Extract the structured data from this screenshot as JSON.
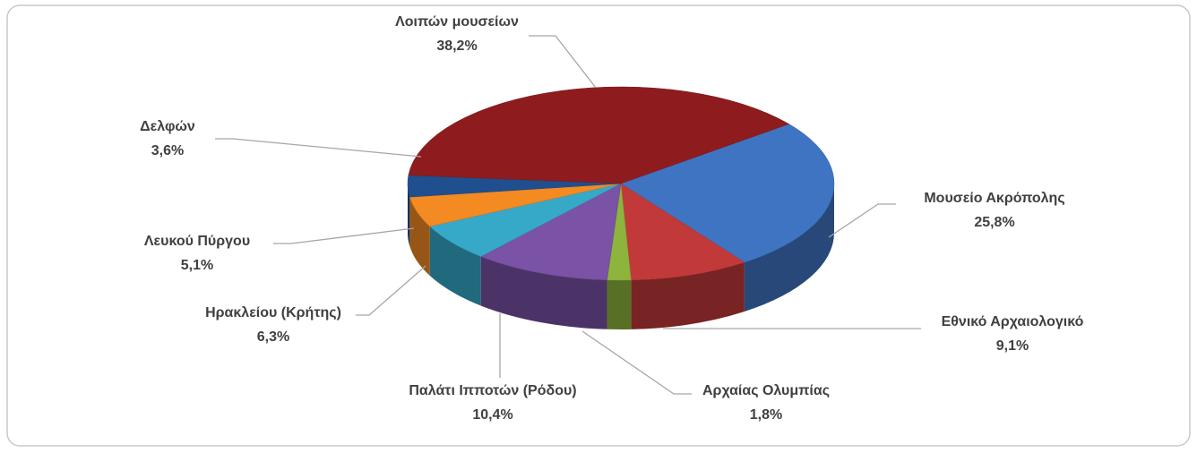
{
  "chart_data": {
    "type": "pie3d",
    "categories": [
      "Λοιπών μουσείων",
      "Μουσείο Ακρόπολης",
      "Εθνικό Αρχαιολογικό",
      "Αρχαίας Ολυμπίας",
      "Παλάτι Ιπποτών (Ρόδου)",
      "Ηρακλείου (Κρήτης)",
      "Λευκού Πύργου",
      "Δελφών"
    ],
    "values": [
      38.2,
      25.8,
      9.1,
      1.8,
      10.4,
      6.3,
      5.1,
      3.6
    ],
    "value_labels": [
      "38,2%",
      "25,8%",
      "9,1%",
      "1,8%",
      "10,4%",
      "6,3%",
      "5,1%",
      "3,6%"
    ],
    "colors": [
      "#8e1c1e",
      "#3f74c2",
      "#c2393a",
      "#8db43c",
      "#7a52a6",
      "#36a9c9",
      "#f38a22",
      "#1f4f8f"
    ]
  }
}
